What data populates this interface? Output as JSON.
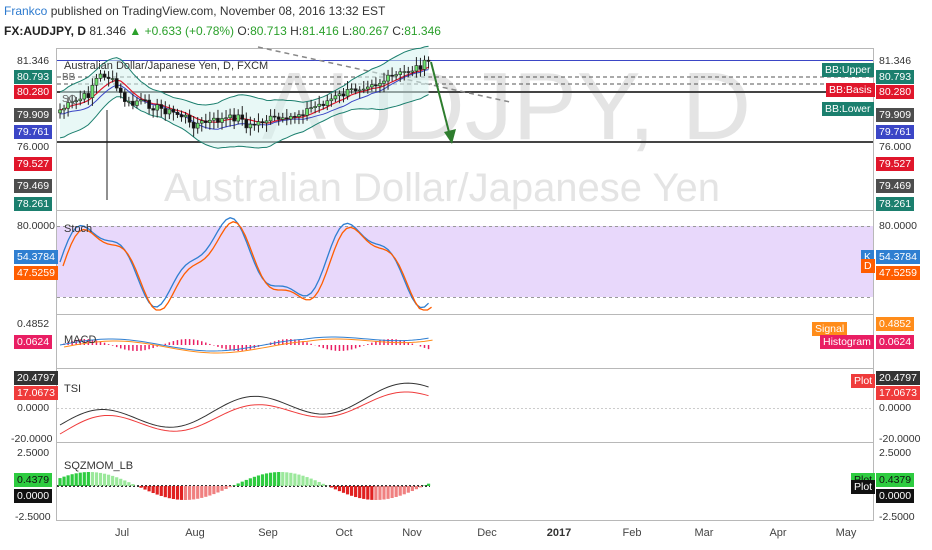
{
  "header": {
    "author": "Frankco",
    "published_text": "published on TradingView.com, November 08, 2016 13:32 EST",
    "symbol": "FX:AUDJPY, D",
    "price": "81.346",
    "change": "+0.633 (+0.78%)",
    "open_label": "O:",
    "open": "80.713",
    "high_label": "H:",
    "high": "81.416",
    "low_label": "L:",
    "low": "80.267",
    "close_label": "C:",
    "close": "81.346"
  },
  "main": {
    "legend": "Australian Dollar/Japanese Yen, D, FXCM",
    "watermark_symbol": "AUDJPY, D",
    "watermark_name": "Australian Dollar/Japanese Yen",
    "left_labels": [
      {
        "text": "81.346",
        "bg": "#ffffff",
        "fg": "#333333"
      },
      {
        "text": "80.793",
        "bg": "#1b7f6e",
        "fg": "#ffffff"
      },
      {
        "text": "80.280",
        "bg": "#e0162b",
        "fg": "#ffffff"
      },
      {
        "text": "79.909",
        "bg": "#4d4d4d",
        "fg": "#ffffff"
      },
      {
        "text": "79.761",
        "bg": "#3b46c6",
        "fg": "#ffffff"
      },
      {
        "text": "76.000",
        "bg": "#ffffff",
        "fg": "#333333"
      },
      {
        "text": "79.527",
        "bg": "#e0162b",
        "fg": "#ffffff"
      },
      {
        "text": "79.469",
        "bg": "#4d4d4d",
        "fg": "#ffffff"
      },
      {
        "text": "78.261",
        "bg": "#1b7f6e",
        "fg": "#ffffff"
      }
    ],
    "right_labels": [
      {
        "text": "81.346",
        "bg": "#ffffff",
        "fg": "#333333"
      },
      {
        "text": "80.793",
        "bg": "#1b7f6e",
        "fg": "#ffffff"
      },
      {
        "text": "80.280",
        "bg": "#e0162b",
        "fg": "#ffffff"
      },
      {
        "text": "79.909",
        "bg": "#4d4d4d",
        "fg": "#ffffff"
      },
      {
        "text": "79.761",
        "bg": "#3b46c6",
        "fg": "#ffffff"
      },
      {
        "text": "76.000",
        "bg": "#ffffff",
        "fg": "#333333"
      },
      {
        "text": "79.527",
        "bg": "#e0162b",
        "fg": "#ffffff"
      },
      {
        "text": "79.469",
        "bg": "#4d4d4d",
        "fg": "#ffffff"
      },
      {
        "text": "78.261",
        "bg": "#1b7f6e",
        "fg": "#ffffff"
      }
    ],
    "bb_tags": [
      {
        "text": "BB:Upper",
        "bg": "#1b7f6e"
      },
      {
        "text": "BB:Basis",
        "bg": "#e0162b"
      },
      {
        "text": "BB:Lower",
        "bg": "#1b7f6e"
      }
    ]
  },
  "stoch": {
    "title": "Stoch",
    "level": "80.0000",
    "k_value": "54.3784",
    "d_value": "47.5259",
    "k_tag": "K",
    "d_tag": "D",
    "colors": {
      "k": "#2f7fd1",
      "d": "#ff5d00",
      "band": "#e8d8fb"
    }
  },
  "macd": {
    "title": "MACD",
    "value1": "0.4852",
    "value2": "0.0624",
    "signal_tag": "Signal",
    "histogram_tag": "Histogram",
    "colors": {
      "signal": "#ff8c1a",
      "histogram": "#e91e63"
    }
  },
  "tsi": {
    "title": "TSI",
    "value1": "20.4797",
    "value2": "17.0673",
    "zero": "0.0000",
    "neg": "-20.0000",
    "plot_tag": "Plot"
  },
  "sqzmom": {
    "title": "SQZMOM_LB",
    "top": "2.5000",
    "value": "0.4379",
    "zero": "0.0000",
    "neg": "-2.5000",
    "plot_tag1": "Plot",
    "plot_tag2": "Plot"
  },
  "x_axis": [
    {
      "label": "Jul",
      "bold": false
    },
    {
      "label": "Aug",
      "bold": false
    },
    {
      "label": "Sep",
      "bold": false
    },
    {
      "label": "Oct",
      "bold": false
    },
    {
      "label": "Nov",
      "bold": false
    },
    {
      "label": "Dec",
      "bold": false
    },
    {
      "label": "2017",
      "bold": true
    },
    {
      "label": "Feb",
      "bold": false
    },
    {
      "label": "Mar",
      "bold": false
    },
    {
      "label": "Apr",
      "bold": false
    },
    {
      "label": "May",
      "bold": false
    }
  ]
}
